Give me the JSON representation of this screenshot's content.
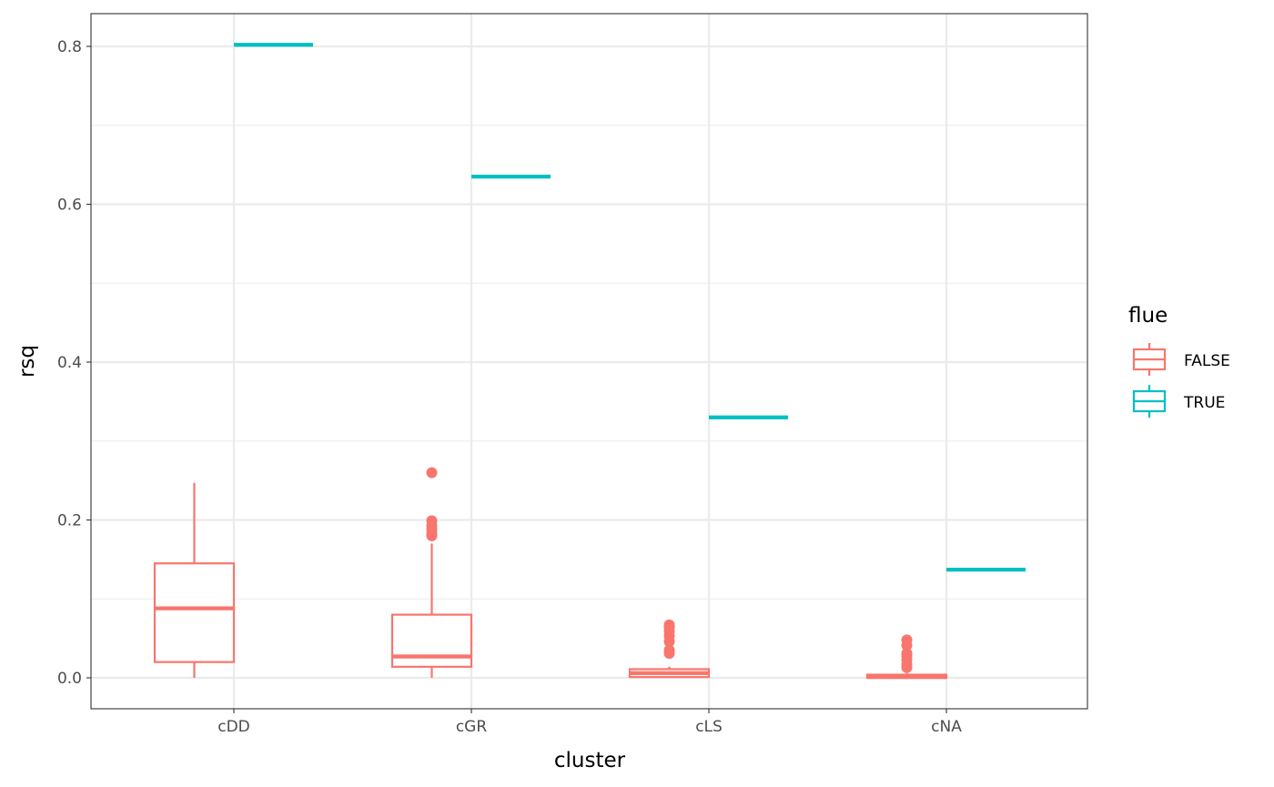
{
  "chart_data": {
    "type": "boxplot",
    "xlabel": "cluster",
    "ylabel": "rsq",
    "categories": [
      "cDD",
      "cGR",
      "cLS",
      "cNA"
    ],
    "ylim": [
      -0.04,
      0.84
    ],
    "yticks": [
      0.0,
      0.2,
      0.4,
      0.6,
      0.8
    ],
    "ytick_labels": [
      "0.0",
      "0.2",
      "0.4",
      "0.6",
      "0.8"
    ],
    "grid": true,
    "legend": {
      "title": "flue",
      "position": "right",
      "entries": [
        {
          "label": "FALSE",
          "color": "#F8766D"
        },
        {
          "label": "TRUE",
          "color": "#00BFC4"
        }
      ]
    },
    "series": [
      {
        "name": "FALSE",
        "color": "#F8766D",
        "boxes": [
          {
            "category": "cDD",
            "min": 0.0,
            "q1": 0.02,
            "median": 0.088,
            "q3": 0.145,
            "max": 0.247,
            "outliers": []
          },
          {
            "category": "cGR",
            "min": 0.0,
            "q1": 0.014,
            "median": 0.027,
            "q3": 0.08,
            "max": 0.17,
            "outliers": [
              0.18,
              0.183,
              0.188,
              0.193,
              0.199,
              0.26
            ]
          },
          {
            "category": "cLS",
            "min": 0.0,
            "q1": 0.001,
            "median": 0.006,
            "q3": 0.011,
            "max": 0.014,
            "outliers": [
              0.031,
              0.035,
              0.046,
              0.053,
              0.059,
              0.064,
              0.067
            ]
          },
          {
            "category": "cNA",
            "min": 0.0,
            "q1": 0.0,
            "median": 0.001,
            "q3": 0.004,
            "max": 0.006,
            "outliers": [
              0.013,
              0.017,
              0.023,
              0.028,
              0.031,
              0.041,
              0.048
            ]
          }
        ]
      },
      {
        "name": "TRUE",
        "color": "#00BFC4",
        "boxes": [
          {
            "category": "cDD",
            "min": 0.802,
            "q1": 0.802,
            "median": 0.802,
            "q3": 0.802,
            "max": 0.802,
            "outliers": []
          },
          {
            "category": "cGR",
            "min": 0.635,
            "q1": 0.635,
            "median": 0.635,
            "q3": 0.635,
            "max": 0.635,
            "outliers": []
          },
          {
            "category": "cLS",
            "min": 0.33,
            "q1": 0.33,
            "median": 0.33,
            "q3": 0.33,
            "max": 0.33,
            "outliers": []
          },
          {
            "category": "cNA",
            "min": 0.137,
            "q1": 0.137,
            "median": 0.137,
            "q3": 0.137,
            "max": 0.137,
            "outliers": []
          }
        ]
      }
    ]
  }
}
